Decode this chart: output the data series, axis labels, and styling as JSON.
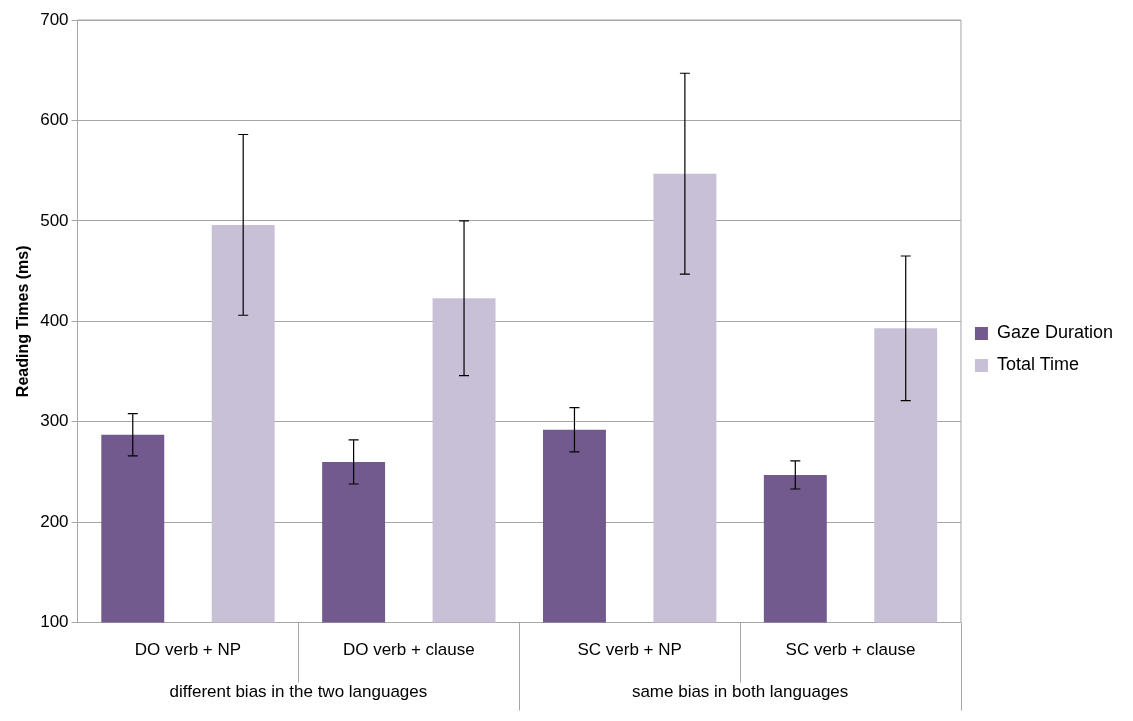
{
  "chart_data": {
    "type": "bar",
    "ylabel": "Reading Times (ms)",
    "categories": [
      "DO verb + NP",
      "DO verb + clause",
      "SC verb + NP",
      "SC verb + clause"
    ],
    "series": [
      {
        "name": "Gaze Duration",
        "color": "#725a8e",
        "values": [
          287,
          260,
          292,
          247
        ],
        "errors": [
          21,
          22,
          22,
          14
        ]
      },
      {
        "name": "Total Time",
        "color": "#c8c0d6",
        "values": [
          496,
          423,
          547,
          393
        ],
        "errors": [
          90,
          77,
          100,
          72
        ]
      }
    ],
    "ylim": [
      100,
      700
    ],
    "yticks": [
      100,
      200,
      300,
      400,
      500,
      600,
      700
    ],
    "grid": "y",
    "legend": "right",
    "annotations": [
      "different bias in the two languages",
      "same bias in both languages"
    ]
  }
}
